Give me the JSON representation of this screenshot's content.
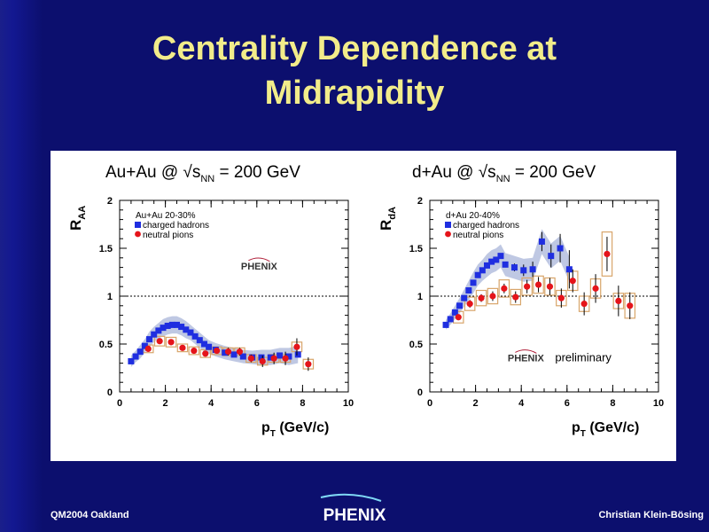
{
  "title": {
    "line1": "Centrality Dependence at",
    "line2": "Midrapidity"
  },
  "footer": {
    "left": "QM2004 Oakland",
    "center_logo": "PHENIX",
    "right": "Christian Klein-Bösing"
  },
  "colors": {
    "background": "#0c0f6e",
    "title": "#f2ec8a",
    "charged_hadrons": "#1f2ee0",
    "neutral_pions": "#e5141a",
    "band": "#b4bede",
    "systematic_box": "#d8a56a"
  },
  "chart_data": [
    {
      "type": "scatter",
      "header": "Au+Au @ √s",
      "header_sub": "NN",
      "header_tail": " = 200 GeV",
      "ylabel_main": "R",
      "ylabel_sub": "AA",
      "xlabel_main": "p",
      "xlabel_sub": "T",
      "xlabel_tail": " (GeV/c)",
      "xlim": [
        0,
        10
      ],
      "ylim": [
        0,
        2
      ],
      "xticks": [
        "0",
        "2",
        "4",
        "6",
        "8",
        "10"
      ],
      "yticks": [
        "0",
        "0.5",
        "1",
        "1.5",
        "2"
      ],
      "reference_line": 1,
      "legend_title": "Au+Au 20-30%",
      "logo_text": "PHENIX",
      "preliminary_label": "",
      "series": [
        {
          "name": "charged hadrons",
          "marker": "square",
          "x": [
            0.5,
            0.7,
            0.9,
            1.1,
            1.3,
            1.5,
            1.7,
            1.9,
            2.1,
            2.3,
            2.5,
            2.7,
            2.9,
            3.1,
            3.3,
            3.5,
            3.7,
            3.9,
            4.2,
            4.6,
            5.0,
            5.4,
            5.8,
            6.2,
            6.6,
            7.0,
            7.4,
            7.8
          ],
          "y": [
            0.32,
            0.37,
            0.42,
            0.48,
            0.55,
            0.6,
            0.64,
            0.67,
            0.69,
            0.7,
            0.7,
            0.68,
            0.65,
            0.62,
            0.58,
            0.54,
            0.5,
            0.47,
            0.44,
            0.41,
            0.39,
            0.37,
            0.36,
            0.36,
            0.36,
            0.38,
            0.37,
            0.39
          ],
          "band": [
            0.06,
            0.06,
            0.07,
            0.07,
            0.08,
            0.08,
            0.08,
            0.09,
            0.09,
            0.09,
            0.09,
            0.09,
            0.09,
            0.08,
            0.08,
            0.08,
            0.08,
            0.07,
            0.07,
            0.07,
            0.07,
            0.07,
            0.07,
            0.08,
            0.08,
            0.08,
            0.09,
            0.09
          ]
        },
        {
          "name": "neutral pions",
          "marker": "circle",
          "x": [
            1.25,
            1.75,
            2.25,
            2.75,
            3.25,
            3.75,
            4.25,
            4.75,
            5.25,
            5.75,
            6.25,
            6.75,
            7.25,
            7.75,
            8.25
          ],
          "y": [
            0.45,
            0.53,
            0.52,
            0.46,
            0.43,
            0.4,
            0.43,
            0.42,
            0.42,
            0.35,
            0.32,
            0.35,
            0.35,
            0.47,
            0.29
          ],
          "err": [
            0.03,
            0.03,
            0.03,
            0.03,
            0.03,
            0.03,
            0.03,
            0.04,
            0.04,
            0.04,
            0.06,
            0.06,
            0.07,
            0.09,
            0.07
          ],
          "sys": [
            0.04,
            0.05,
            0.05,
            0.04,
            0.04,
            0.04,
            0.04,
            0.04,
            0.04,
            0.04,
            0.04,
            0.04,
            0.04,
            0.05,
            0.05
          ]
        }
      ]
    },
    {
      "type": "scatter",
      "header": "d+Au @ √s",
      "header_sub": "NN",
      "header_tail": " = 200 GeV",
      "ylabel_main": "R",
      "ylabel_sub": "dA",
      "xlabel_main": "p",
      "xlabel_sub": "T",
      "xlabel_tail": " (GeV/c)",
      "xlim": [
        0,
        10
      ],
      "ylim": [
        0,
        2
      ],
      "xticks": [
        "0",
        "2",
        "4",
        "6",
        "8",
        "10"
      ],
      "yticks": [
        "0",
        "0.5",
        "1",
        "1.5",
        "2"
      ],
      "reference_line": 1,
      "legend_title": "d+Au 20-40%",
      "logo_text": "PHENIX",
      "preliminary_label": "preliminary",
      "series": [
        {
          "name": "charged hadrons",
          "marker": "square",
          "x": [
            0.7,
            0.9,
            1.1,
            1.3,
            1.5,
            1.7,
            1.9,
            2.1,
            2.3,
            2.5,
            2.7,
            2.9,
            3.1,
            3.3,
            3.7,
            4.1,
            4.5,
            4.9,
            5.3,
            5.7,
            6.1
          ],
          "y": [
            0.7,
            0.76,
            0.83,
            0.9,
            0.98,
            1.06,
            1.14,
            1.22,
            1.27,
            1.32,
            1.36,
            1.38,
            1.42,
            1.33,
            1.3,
            1.27,
            1.28,
            1.57,
            1.42,
            1.5,
            1.28
          ],
          "err": [
            0.01,
            0.01,
            0.01,
            0.01,
            0.01,
            0.01,
            0.01,
            0.01,
            0.01,
            0.02,
            0.02,
            0.02,
            0.02,
            0.03,
            0.04,
            0.06,
            0.08,
            0.1,
            0.12,
            0.15,
            0.2
          ],
          "band": [
            0.05,
            0.06,
            0.07,
            0.08,
            0.09,
            0.1,
            0.11,
            0.11,
            0.11,
            0.12,
            0.12,
            0.12,
            0.12,
            0.12,
            0.12,
            0.12,
            0.12,
            0.13,
            0.13,
            0.13,
            0.13
          ]
        },
        {
          "name": "neutral pions",
          "marker": "circle",
          "x": [
            1.25,
            1.75,
            2.25,
            2.75,
            3.25,
            3.75,
            4.25,
            4.75,
            5.25,
            5.75,
            6.25,
            6.75,
            7.25,
            7.75,
            8.25,
            8.75
          ],
          "y": [
            0.78,
            0.92,
            0.98,
            1.0,
            1.08,
            0.99,
            1.1,
            1.12,
            1.1,
            0.98,
            1.16,
            0.92,
            1.08,
            1.44,
            0.95,
            0.9
          ],
          "err": [
            0.03,
            0.04,
            0.04,
            0.05,
            0.05,
            0.06,
            0.07,
            0.08,
            0.09,
            0.1,
            0.12,
            0.12,
            0.15,
            0.18,
            0.16,
            0.14
          ],
          "sys": [
            0.06,
            0.07,
            0.08,
            0.08,
            0.09,
            0.08,
            0.09,
            0.09,
            0.09,
            0.08,
            0.1,
            0.08,
            0.1,
            0.23,
            0.08,
            0.13
          ]
        }
      ]
    }
  ]
}
